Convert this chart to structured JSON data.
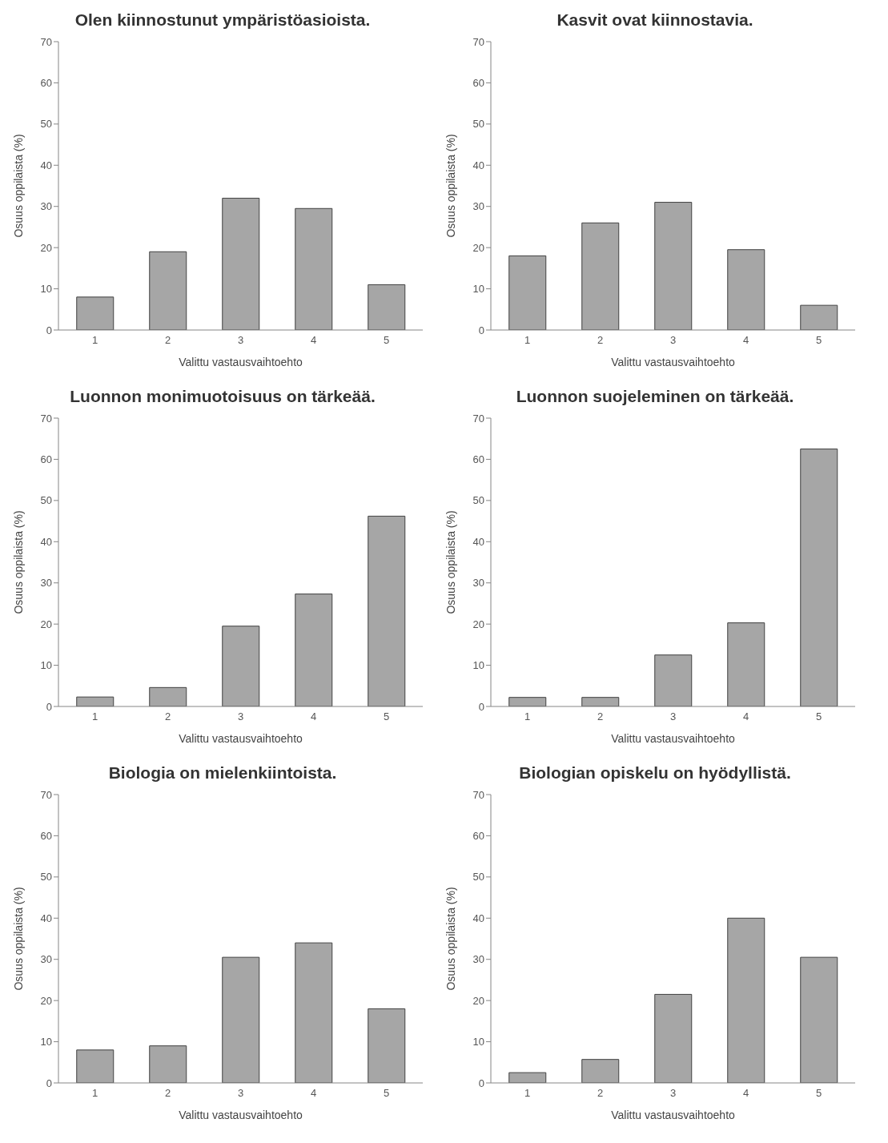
{
  "chart_data": [
    {
      "type": "bar",
      "title": "Olen kiinnostunut ympäristöasioista.",
      "categories": [
        "1",
        "2",
        "3",
        "4",
        "5"
      ],
      "values": [
        8,
        19,
        32,
        29.5,
        11
      ],
      "color": "#a6a6a6",
      "xlabel": "Valittu vastausvaihtoehto",
      "ylabel": "Osuus oppilaista (%)",
      "ylim": [
        0,
        70
      ],
      "yticks": [
        0,
        10,
        20,
        30,
        40,
        50,
        60,
        70
      ],
      "grid": false
    },
    {
      "type": "bar",
      "title": "Kasvit ovat kiinnostavia.",
      "categories": [
        "1",
        "2",
        "3",
        "4",
        "5"
      ],
      "values": [
        18,
        26,
        31,
        19.5,
        6
      ],
      "color": "#a6a6a6",
      "xlabel": "Valittu vastausvaihtoehto",
      "ylabel": "Osuus oppilaista (%)",
      "ylim": [
        0,
        70
      ],
      "yticks": [
        0,
        10,
        20,
        30,
        40,
        50,
        60,
        70
      ],
      "grid": false
    },
    {
      "type": "bar",
      "title": "Luonnon monimuotoisuus on tärkeää.",
      "categories": [
        "1",
        "2",
        "3",
        "4",
        "5"
      ],
      "values": [
        2.3,
        4.6,
        19.5,
        27.3,
        46.2
      ],
      "color": "#a6a6a6",
      "xlabel": "Valittu vastausvaihtoehto",
      "ylabel": "Osuus oppilaista (%)",
      "ylim": [
        0,
        70
      ],
      "yticks": [
        0,
        10,
        20,
        30,
        40,
        50,
        60,
        70
      ],
      "grid": false
    },
    {
      "type": "bar",
      "title": "Luonnon suojeleminen on tärkeää.",
      "categories": [
        "1",
        "2",
        "3",
        "4",
        "5"
      ],
      "values": [
        2.2,
        2.2,
        12.5,
        20.3,
        62.5
      ],
      "color": "#a6a6a6",
      "xlabel": "Valittu vastausvaihtoehto",
      "ylabel": "Osuus oppilaista (%)",
      "ylim": [
        0,
        70
      ],
      "yticks": [
        0,
        10,
        20,
        30,
        40,
        50,
        60,
        70
      ],
      "grid": false
    },
    {
      "type": "bar",
      "title": "Biologia on mielenkiintoista.",
      "categories": [
        "1",
        "2",
        "3",
        "4",
        "5"
      ],
      "values": [
        8,
        9,
        30.5,
        34,
        18
      ],
      "color": "#a6a6a6",
      "xlabel": "Valittu vastausvaihtoehto",
      "ylabel": "Osuus oppilaista (%)",
      "ylim": [
        0,
        70
      ],
      "yticks": [
        0,
        10,
        20,
        30,
        40,
        50,
        60,
        70
      ],
      "grid": false
    },
    {
      "type": "bar",
      "title": "Biologian opiskelu on hyödyllistä.",
      "categories": [
        "1",
        "2",
        "3",
        "4",
        "5"
      ],
      "values": [
        2.5,
        5.7,
        21.5,
        40,
        30.5
      ],
      "color": "#a6a6a6",
      "xlabel": "Valittu vastausvaihtoehto",
      "ylabel": "Osuus oppilaista (%)",
      "ylim": [
        0,
        70
      ],
      "yticks": [
        0,
        10,
        20,
        30,
        40,
        50,
        60,
        70
      ],
      "grid": false
    }
  ]
}
